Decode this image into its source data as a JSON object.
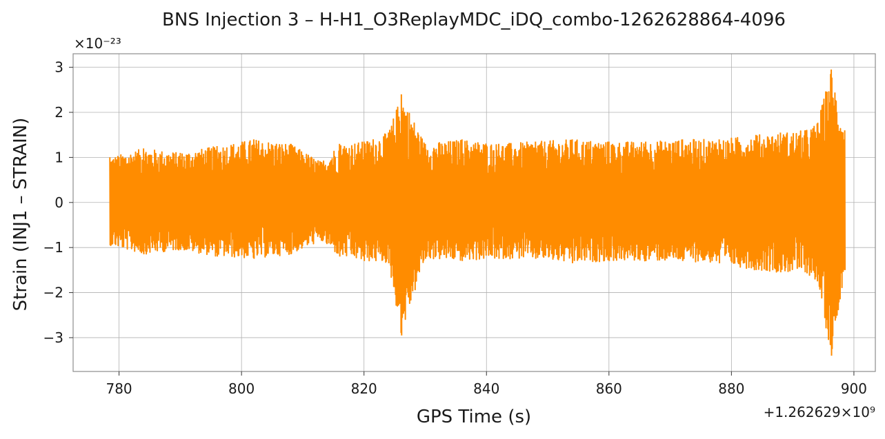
{
  "chart_data": {
    "type": "line",
    "title": "BNS Injection 3 – H-H1_O3ReplayMDC_iDQ_combo-1262628864-4096",
    "xlabel": "GPS Time (s)",
    "ylabel": "Strain (INJ1 – STRAIN)",
    "y_multiplier_label": "×10⁻²³",
    "x_offset_label": "+1.262629×10⁹",
    "xlim": [
      772.5,
      903.5
    ],
    "ylim": [
      -3.75,
      3.3
    ],
    "x_ticks": [
      780,
      800,
      820,
      840,
      860,
      880,
      900
    ],
    "x_tick_labels": [
      "780",
      "800",
      "820",
      "840",
      "860",
      "880",
      "900"
    ],
    "y_ticks": [
      -3,
      -2,
      -1,
      0,
      1,
      2,
      3
    ],
    "y_tick_labels": [
      "−3",
      "−2",
      "−1",
      "0",
      "1",
      "2",
      "3"
    ],
    "grid": true,
    "line_color": "#ff8c00",
    "series": [
      {
        "x": [
          778.5,
          784,
          790,
          796,
          802,
          808,
          813,
          816,
          820,
          824,
          826.1,
          830,
          836,
          842,
          848,
          854,
          860,
          866,
          872,
          878,
          884,
          888,
          892,
          894,
          896.3,
          898.5
        ],
        "upper": [
          1.0,
          1.2,
          1.1,
          1.25,
          1.4,
          1.3,
          0.9,
          1.3,
          1.35,
          1.55,
          2.4,
          1.3,
          1.4,
          1.3,
          1.35,
          1.4,
          1.35,
          1.35,
          1.4,
          1.4,
          1.5,
          1.55,
          1.6,
          1.75,
          2.95,
          1.6
        ],
        "lower": [
          -0.95,
          -1.15,
          -1.05,
          -1.2,
          -1.25,
          -1.15,
          -0.85,
          -1.2,
          -1.3,
          -1.35,
          -2.95,
          -1.25,
          -1.3,
          -1.25,
          -1.25,
          -1.35,
          -1.3,
          -1.3,
          -1.3,
          -1.35,
          -1.5,
          -1.55,
          -1.55,
          -1.75,
          -3.4,
          -1.5
        ]
      }
    ]
  }
}
